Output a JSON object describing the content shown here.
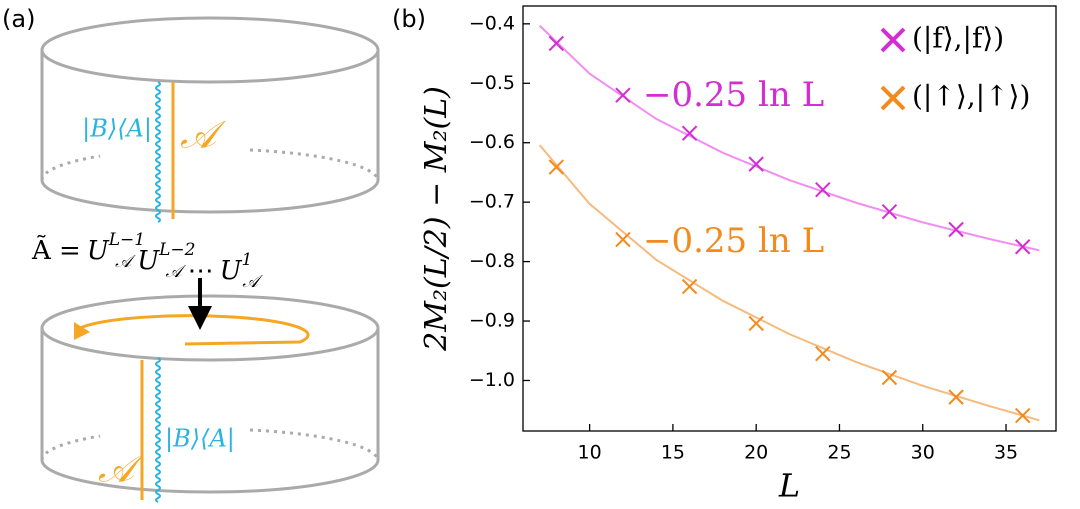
{
  "panel_a": {
    "label": "(a)",
    "top": {
      "state": "|B⟩⟨A|",
      "region": "𝒜"
    },
    "equation": {
      "lhs": "Ã =",
      "terms": [
        {
          "base": "U",
          "sub": "𝒜",
          "sup": "L−1"
        },
        {
          "base": "U",
          "sub": "𝒜",
          "sup": "L−2"
        },
        {
          "base": "U",
          "sub": "𝒜",
          "sup": "1"
        }
      ],
      "dots": "⋯"
    },
    "bottom": {
      "state": "|B⟩⟨A|",
      "region": "𝒜"
    }
  },
  "chart_data": {
    "type": "scatter",
    "panel_label": "(b)",
    "x_label": "L",
    "y_label": "2M₂(L/2) − M₂(L)",
    "xlim": [
      6,
      38
    ],
    "ylim": [
      -1.085,
      -0.37
    ],
    "xticks": [
      10,
      15,
      20,
      25,
      30,
      35
    ],
    "yticks": [
      {
        "value": -0.4,
        "label": "−0.4"
      },
      {
        "value": -0.5,
        "label": "−0.5"
      },
      {
        "value": -0.6,
        "label": "−0.6"
      },
      {
        "value": -0.7,
        "label": "−0.7"
      },
      {
        "value": -0.8,
        "label": "−0.8"
      },
      {
        "value": -0.9,
        "label": "−0.9"
      },
      {
        "value": -1.0,
        "label": "−1.0"
      }
    ],
    "legend": "upper right",
    "series": [
      {
        "name": "(|f⟩,|f⟩)",
        "color": "#d22ed2",
        "fit_color": "#f28ef2",
        "x": [
          8,
          12,
          16,
          20,
          24,
          28,
          32,
          36
        ],
        "values": [
          -0.433,
          -0.52,
          -0.584,
          -0.636,
          -0.679,
          -0.716,
          -0.746,
          -0.775
        ],
        "fit_x": [
          7,
          10,
          14,
          18,
          22,
          26,
          30,
          34,
          37
        ],
        "fit_values": [
          -0.403,
          -0.484,
          -0.56,
          -0.617,
          -0.663,
          -0.701,
          -0.734,
          -0.762,
          -0.781
        ],
        "annotation": "−0.25 ln L"
      },
      {
        "name": "(|↑⟩,|↑⟩)",
        "color": "#f28a1e",
        "fit_color": "#f5bb7e",
        "x": [
          8,
          12,
          16,
          20,
          24,
          28,
          32,
          36
        ],
        "values": [
          -0.641,
          -0.763,
          -0.842,
          -0.904,
          -0.955,
          -0.995,
          -1.028,
          -1.059
        ],
        "fit_x": [
          7,
          10,
          14,
          18,
          22,
          26,
          30,
          34,
          37
        ],
        "fit_values": [
          -0.604,
          -0.703,
          -0.797,
          -0.866,
          -0.922,
          -0.969,
          -1.009,
          -1.043,
          -1.067
        ],
        "annotation": "−0.25 ln L"
      }
    ]
  }
}
